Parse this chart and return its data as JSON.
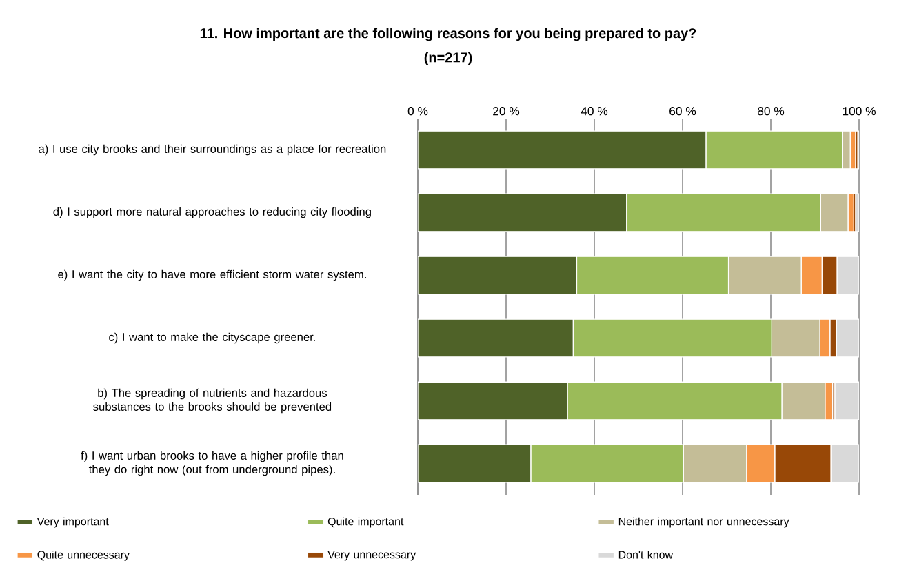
{
  "chart_data": {
    "type": "bar",
    "orientation": "horizontal",
    "stacked": true,
    "title": "11. How important are the following reasons for you being prepared to pay?",
    "subtitle": "(n=217)",
    "categories": [
      "a) I use city brooks and their surroundings as a place for recreation",
      "d) I support more natural approaches to reducing city flooding",
      "e) I want the city to have more efficient storm water system.",
      "c) I want to make the cityscape greener.",
      "b) The spreading of nutrients and hazardous substances to the brooks should be prevented",
      "f) I want urban brooks to have a higher profile than they do right now (out from underground pipes)."
    ],
    "series": [
      {
        "name": "Very important",
        "color": "#4f6228",
        "values": [
          65.3,
          47.3,
          36.0,
          35.2,
          33.9,
          25.6
        ]
      },
      {
        "name": "Quite important",
        "color": "#9bbb59",
        "values": [
          30.9,
          44.0,
          34.4,
          45.0,
          48.6,
          34.6
        ]
      },
      {
        "name": "Neither important nor unnecessary",
        "color": "#c4bd97",
        "values": [
          1.8,
          6.2,
          16.5,
          10.9,
          9.8,
          14.3
        ]
      },
      {
        "name": "Quite unnecessary",
        "color": "#f79646",
        "values": [
          1.2,
          1.3,
          4.7,
          2.3,
          1.7,
          6.4
        ]
      },
      {
        "name": "Very unnecessary",
        "color": "#984807",
        "values": [
          0.5,
          0.4,
          3.4,
          1.5,
          0.5,
          12.7
        ]
      },
      {
        "name": "Don't know",
        "color": "#d9d9d9",
        "values": [
          0.3,
          0.8,
          5.0,
          5.1,
          5.5,
          6.4
        ]
      }
    ],
    "xlim": [
      0,
      100
    ],
    "xticks": [
      {
        "value": 0,
        "label": "0 %"
      },
      {
        "value": 20,
        "label": "20 %"
      },
      {
        "value": 40,
        "label": "40 %"
      },
      {
        "value": 60,
        "label": "60 %"
      },
      {
        "value": 80,
        "label": "80 %"
      },
      {
        "value": 100,
        "label": "100 %"
      }
    ],
    "grid": "x",
    "legend": "bottom"
  }
}
